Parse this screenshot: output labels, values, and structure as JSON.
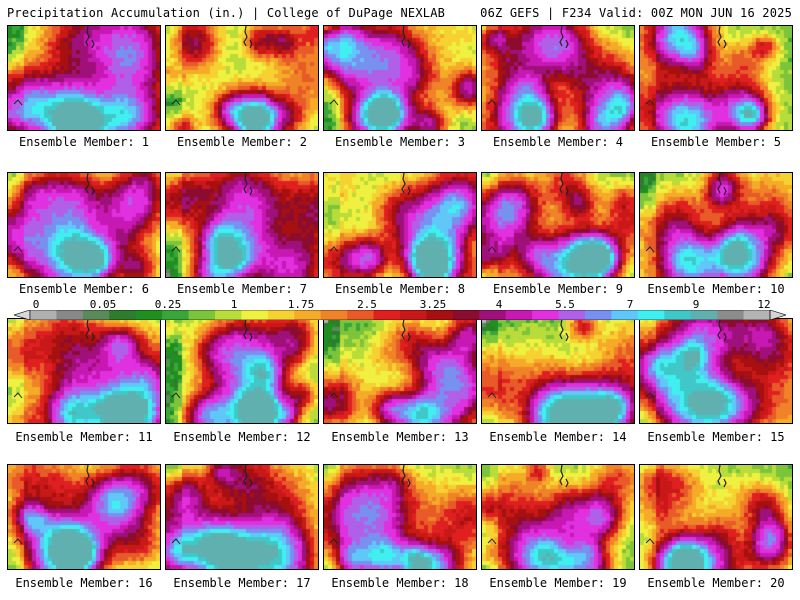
{
  "header": {
    "left_title": "Precipitation Accumulation (in.) | College of DuPage NEXLAB",
    "right_title": "06Z GEFS | F234 Valid: 00Z MON JUN 16 2025"
  },
  "panels": [
    {
      "label": "Ensemble Member: 1"
    },
    {
      "label": "Ensemble Member: 2"
    },
    {
      "label": "Ensemble Member: 3"
    },
    {
      "label": "Ensemble Member: 4"
    },
    {
      "label": "Ensemble Member: 5"
    },
    {
      "label": "Ensemble Member: 6"
    },
    {
      "label": "Ensemble Member: 7"
    },
    {
      "label": "Ensemble Member: 8"
    },
    {
      "label": "Ensemble Member: 9"
    },
    {
      "label": "Ensemble Member: 10"
    },
    {
      "label": "Ensemble Member: 11"
    },
    {
      "label": "Ensemble Member: 12"
    },
    {
      "label": "Ensemble Member: 13"
    },
    {
      "label": "Ensemble Member: 14"
    },
    {
      "label": "Ensemble Member: 15"
    },
    {
      "label": "Ensemble Member: 16"
    },
    {
      "label": "Ensemble Member: 17"
    },
    {
      "label": "Ensemble Member: 18"
    },
    {
      "label": "Ensemble Member: 19"
    },
    {
      "label": "Ensemble Member: 20"
    }
  ],
  "colorbar": {
    "tick_labels": [
      "0",
      "0.05",
      "0.25",
      "1",
      "1.75",
      "2.5",
      "3.25",
      "4",
      "5.5",
      "7",
      "9",
      "12"
    ],
    "colors": [
      "#d8d8d8",
      "#b0b0b0",
      "#888888",
      "#5a8a5a",
      "#2e7d2e",
      "#1f8f1f",
      "#3aa63a",
      "#7cc43a",
      "#b8dc3a",
      "#f0f040",
      "#f5d232",
      "#f5aa28",
      "#f08228",
      "#e85a28",
      "#e02020",
      "#c81818",
      "#a81010",
      "#8c0c30",
      "#a0107a",
      "#c818b4",
      "#e030e0",
      "#b060e8",
      "#7890f0",
      "#60c8f8",
      "#40f0f0",
      "#40c8c8",
      "#60b0b0",
      "#8c8c8c",
      "#b4b4b4",
      "#d4d4d4"
    ]
  }
}
